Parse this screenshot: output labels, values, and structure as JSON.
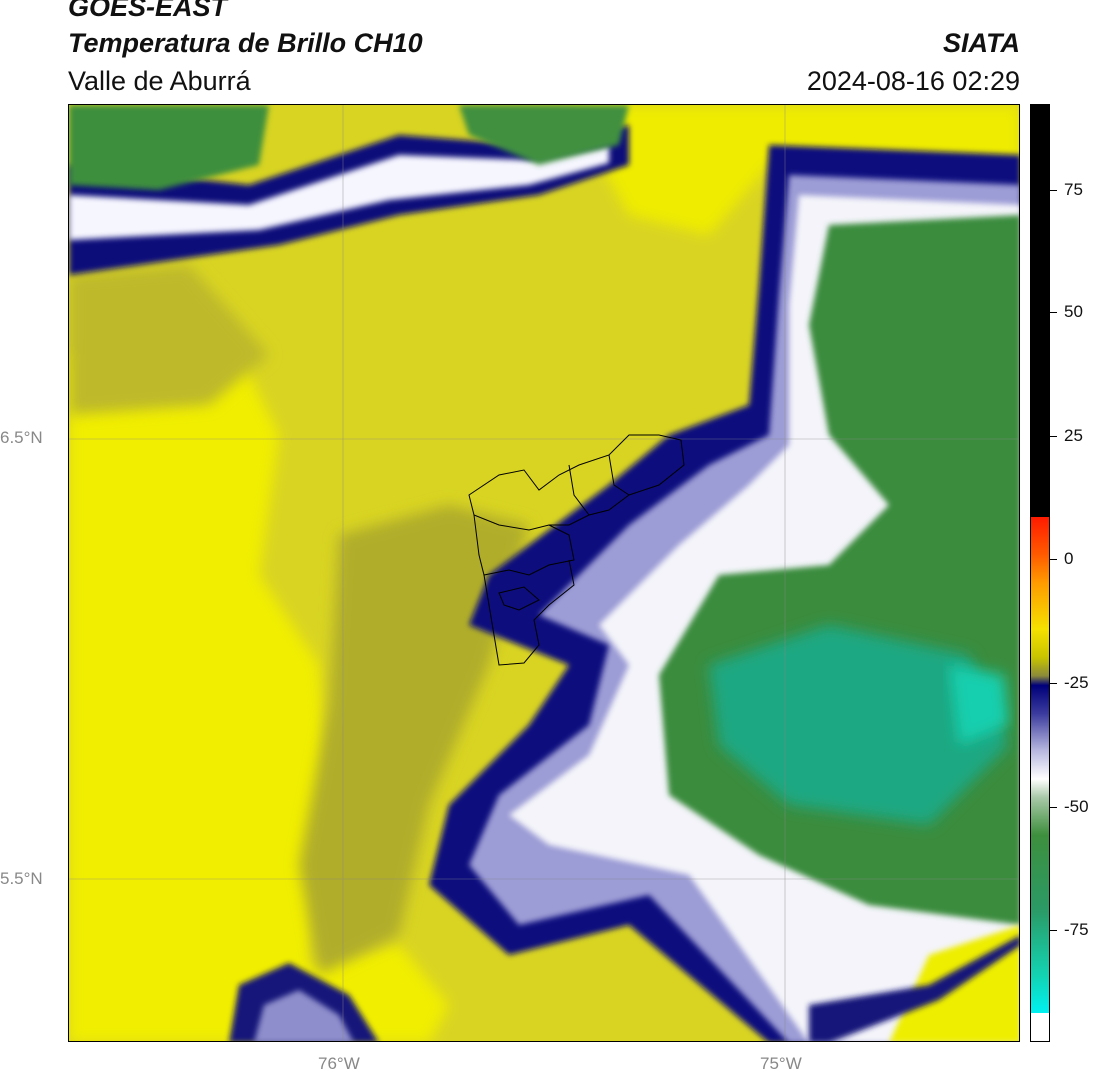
{
  "header": {
    "satellite": "GOES-EAST",
    "product": "Temperatura de Brillo CH10",
    "region": "Valle de Aburrá",
    "organization": "SIATA",
    "datetime": "2024-08-16 02:29"
  },
  "map": {
    "lat_labels": [
      "6.5°N",
      "5.5°N"
    ],
    "lon_labels": [
      "76°W",
      "75°W"
    ]
  },
  "colorbar": {
    "tick_labels": [
      "75",
      "50",
      "25",
      "0",
      "-25",
      "-50",
      "-75"
    ],
    "colors": {
      "black": "#000000",
      "red": "#ff1a00",
      "orange": "#ff8c00",
      "yellow": "#f5f500",
      "olive": "#a8a83a",
      "navy": "#00007a",
      "lavender": "#b8b8e0",
      "white": "#ffffff",
      "green": "#3d8f3d",
      "teal": "#13d3b3",
      "cyan": "#00e8e8"
    }
  }
}
